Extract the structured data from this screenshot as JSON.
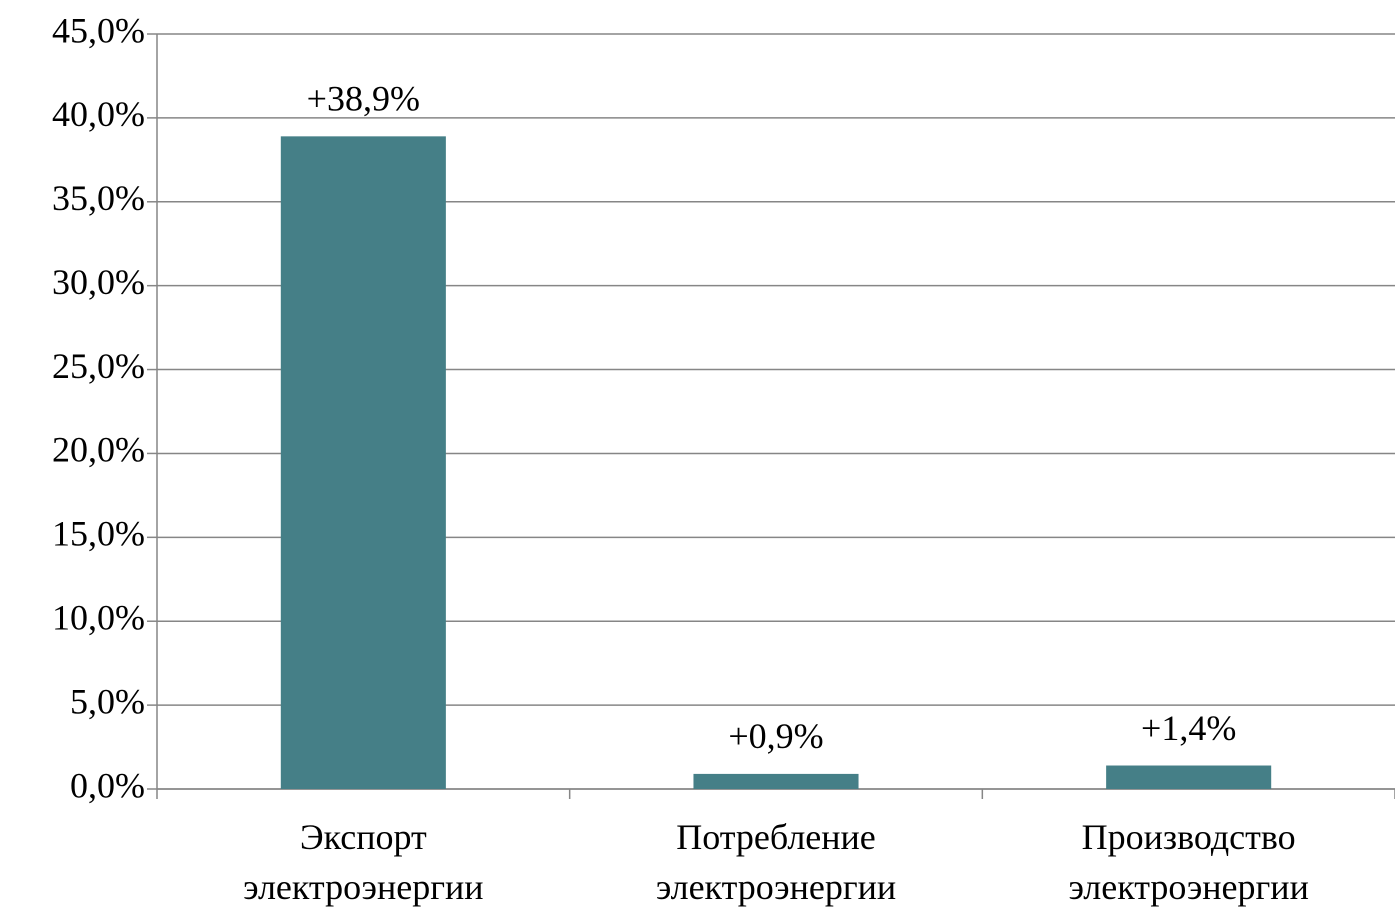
{
  "chart_data": {
    "type": "bar",
    "categories": [
      "Экспорт электроэнергии",
      "Потребление электроэнергии",
      "Производство электроэнергии"
    ],
    "values": [
      38.9,
      0.9,
      1.4
    ],
    "value_labels": [
      "+38,9%",
      "+0,9%",
      "+1,4%"
    ],
    "color": "#457f87",
    "ylim": [
      0,
      45
    ],
    "yticks": [
      {
        "value": 0,
        "label": "0,0%"
      },
      {
        "value": 5,
        "label": "5,0%"
      },
      {
        "value": 10,
        "label": "10,0%"
      },
      {
        "value": 15,
        "label": "15,0%"
      },
      {
        "value": 20,
        "label": "20,0%"
      },
      {
        "value": 25,
        "label": "25,0%"
      },
      {
        "value": 30,
        "label": "30,0%"
      },
      {
        "value": 35,
        "label": "35,0%"
      },
      {
        "value": 40,
        "label": "40,0%"
      },
      {
        "value": 45,
        "label": "45,0%"
      }
    ],
    "grid": true
  }
}
